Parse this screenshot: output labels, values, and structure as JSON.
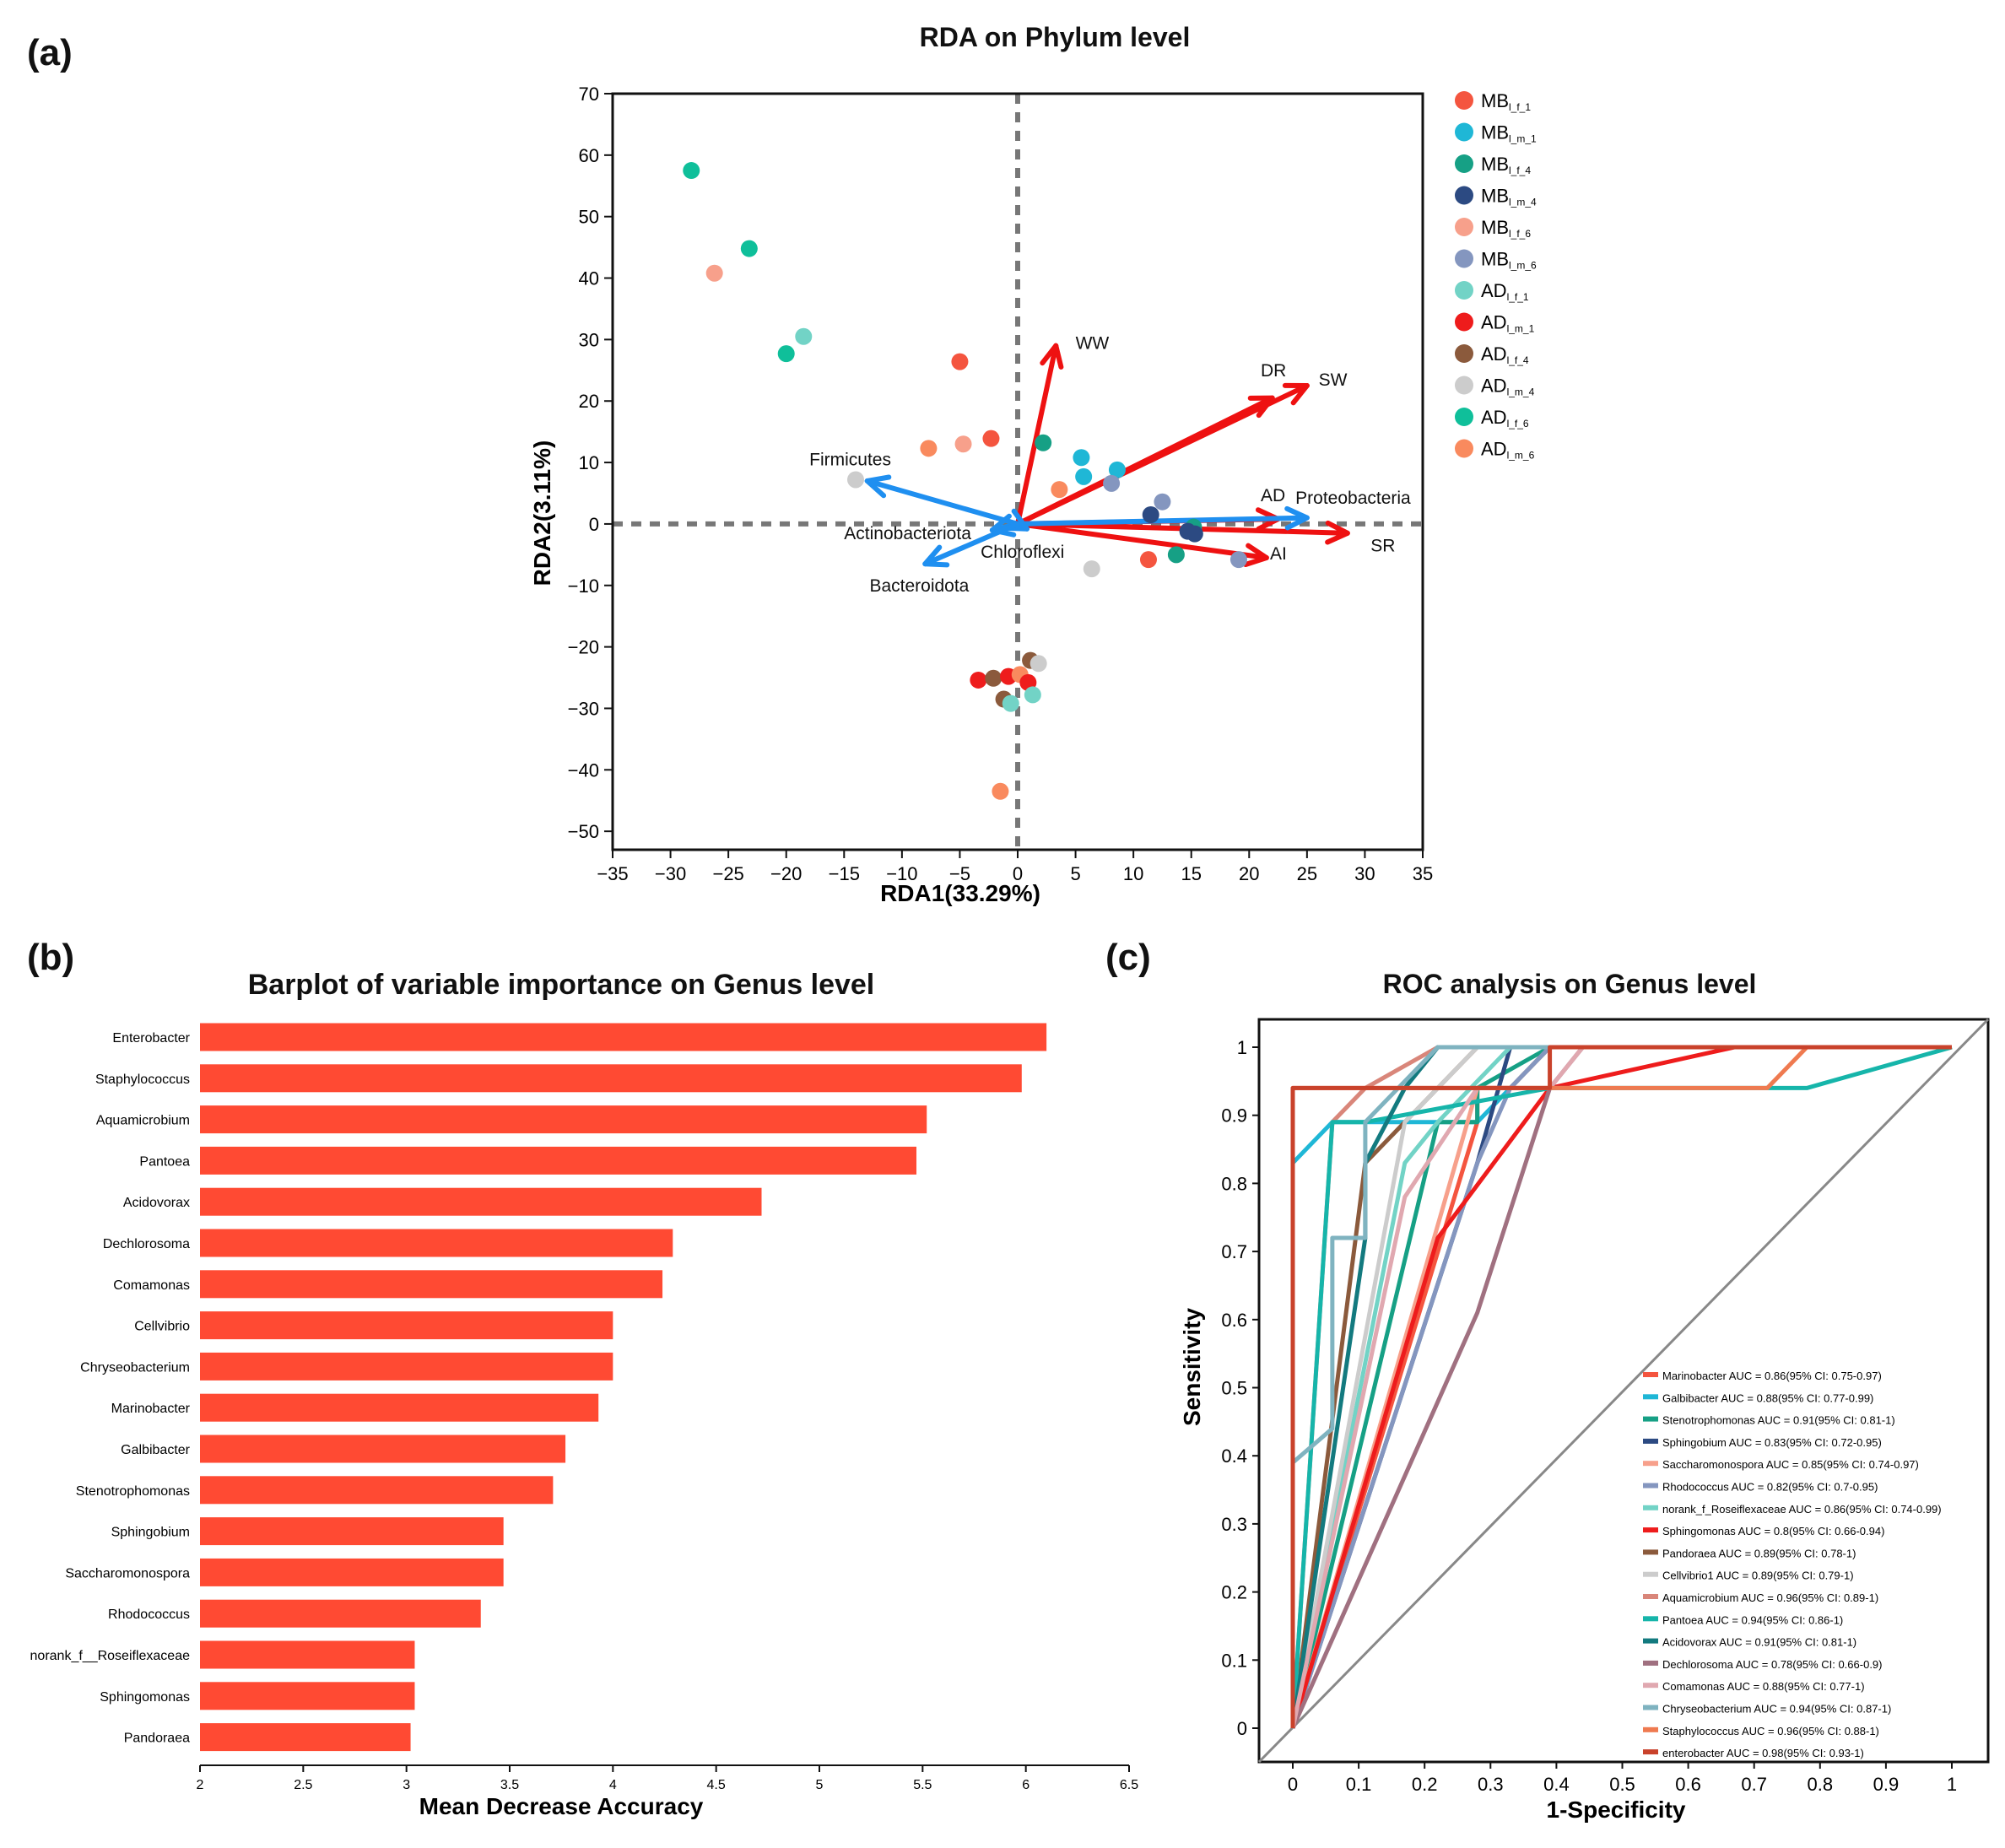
{
  "panels": {
    "a_label": "(a)",
    "b_label": "(b)",
    "c_label": "(c)"
  },
  "chart_data": [
    {
      "id": "rda",
      "type": "scatter",
      "title": "RDA on Phylum level",
      "xlabel": "RDA1(33.29%)",
      "ylabel": "RDA2(3.11%)",
      "xlim": [
        -35,
        35
      ],
      "ylim": [
        -53,
        70
      ],
      "xticks": [
        "−35",
        "−30",
        "−25",
        "−20",
        "−15",
        "−10",
        "−5",
        "0",
        "5",
        "10",
        "15",
        "20",
        "25",
        "30",
        "35"
      ],
      "xtick_values": [
        -35,
        -30,
        -25,
        -20,
        -15,
        -10,
        -5,
        0,
        5,
        10,
        15,
        20,
        25,
        30,
        35
      ],
      "yticks": [
        "70",
        "60",
        "50",
        "40",
        "30",
        "20",
        "10",
        "0",
        "−10",
        "−20",
        "−30",
        "−40",
        "−50"
      ],
      "ytick_values": [
        70,
        60,
        50,
        40,
        30,
        20,
        10,
        0,
        -10,
        -20,
        -30,
        -40,
        -50
      ],
      "groups": [
        {
          "prefix": "MB",
          "sub": "l_f_1",
          "color": "#f4553f"
        },
        {
          "prefix": "MB",
          "sub": "l_m_1",
          "color": "#1fb7d6"
        },
        {
          "prefix": "MB",
          "sub": "l_f_4",
          "color": "#16a085"
        },
        {
          "prefix": "MB",
          "sub": "l_m_4",
          "color": "#2c4a82"
        },
        {
          "prefix": "MB",
          "sub": "l_f_6",
          "color": "#f7a08b"
        },
        {
          "prefix": "MB",
          "sub": "l_m_6",
          "color": "#8496bf"
        },
        {
          "prefix": "AD",
          "sub": "l_f_1",
          "color": "#72d3c6"
        },
        {
          "prefix": "AD",
          "sub": "l_m_1",
          "color": "#ee1c1c"
        },
        {
          "prefix": "AD",
          "sub": "l_f_4",
          "color": "#8b5a3c"
        },
        {
          "prefix": "AD",
          "sub": "l_m_4",
          "color": "#cccccc"
        },
        {
          "prefix": "AD",
          "sub": "l_f_6",
          "color": "#0fbf9a"
        },
        {
          "prefix": "AD",
          "sub": "l_m_6",
          "color": "#f98a5e"
        }
      ],
      "points": [
        {
          "g": 10,
          "x": -28.2,
          "y": 57.5
        },
        {
          "g": 10,
          "x": -23.2,
          "y": 44.8
        },
        {
          "g": 4,
          "x": -26.2,
          "y": 40.8
        },
        {
          "g": 6,
          "x": -18.5,
          "y": 30.5
        },
        {
          "g": 10,
          "x": -20.0,
          "y": 27.7
        },
        {
          "g": 0,
          "x": -5.0,
          "y": 26.4
        },
        {
          "g": 0,
          "x": -2.3,
          "y": 13.9
        },
        {
          "g": 4,
          "x": -4.7,
          "y": 13.0
        },
        {
          "g": 11,
          "x": -7.7,
          "y": 12.3
        },
        {
          "g": 2,
          "x": 2.2,
          "y": 13.2
        },
        {
          "g": 1,
          "x": 5.5,
          "y": 10.8
        },
        {
          "g": 1,
          "x": 8.6,
          "y": 8.8
        },
        {
          "g": 1,
          "x": 5.7,
          "y": 7.7
        },
        {
          "g": 5,
          "x": 8.1,
          "y": 6.6
        },
        {
          "g": 11,
          "x": 3.6,
          "y": 5.6
        },
        {
          "g": 9,
          "x": -14.0,
          "y": 7.2
        },
        {
          "g": 5,
          "x": 12.5,
          "y": 3.6
        },
        {
          "g": 3,
          "x": 11.5,
          "y": 1.5
        },
        {
          "g": 2,
          "x": 15.2,
          "y": -0.5
        },
        {
          "g": 3,
          "x": 14.7,
          "y": -1.2
        },
        {
          "g": 3,
          "x": 15.3,
          "y": -1.6
        },
        {
          "g": 2,
          "x": 13.7,
          "y": -5.0
        },
        {
          "g": 0,
          "x": 11.3,
          "y": -5.8
        },
        {
          "g": 5,
          "x": 19.1,
          "y": -5.8
        },
        {
          "g": 9,
          "x": 6.4,
          "y": -7.3
        },
        {
          "g": 8,
          "x": 1.1,
          "y": -22.2
        },
        {
          "g": 9,
          "x": 1.8,
          "y": -22.7
        },
        {
          "g": 7,
          "x": -3.4,
          "y": -25.4
        },
        {
          "g": 8,
          "x": -2.1,
          "y": -25.1
        },
        {
          "g": 7,
          "x": -0.8,
          "y": -24.8
        },
        {
          "g": 11,
          "x": 0.2,
          "y": -24.5
        },
        {
          "g": 7,
          "x": 0.9,
          "y": -25.8
        },
        {
          "g": 8,
          "x": -1.2,
          "y": -28.5
        },
        {
          "g": 6,
          "x": -0.6,
          "y": -29.2
        },
        {
          "g": 6,
          "x": 1.3,
          "y": -27.8
        },
        {
          "g": 11,
          "x": -1.5,
          "y": -43.5
        }
      ],
      "env_arrows": [
        {
          "name": "WW",
          "x": 3.3,
          "y": 29.0,
          "lx": 5.0,
          "ly": 28.5
        },
        {
          "name": "DR",
          "x": 22.0,
          "y": 20.5,
          "lx": 21.0,
          "ly": 24.0
        },
        {
          "name": "SW",
          "x": 25.0,
          "y": 22.5,
          "lx": 26.0,
          "ly": 22.5
        },
        {
          "name": "AD",
          "x": 22.5,
          "y": 0.8,
          "lx": 21.0,
          "ly": 3.7
        },
        {
          "name": "AI",
          "x": 21.5,
          "y": -5.5,
          "lx": 21.8,
          "ly": -5.8
        },
        {
          "name": "SR",
          "x": 28.5,
          "y": -1.5,
          "lx": 30.5,
          "ly": -4.5
        }
      ],
      "species_arrows": [
        {
          "name": "Firmicutes",
          "x": -13.0,
          "y": 7.0,
          "lx": -18.0,
          "ly": 9.5
        },
        {
          "name": "Proteobacteria",
          "x": 25.0,
          "y": 1.0,
          "lx": 24.0,
          "ly": 3.3
        },
        {
          "name": "Actinobacteriota",
          "x": -2.2,
          "y": -1.0,
          "lx": -15.0,
          "ly": -2.5
        },
        {
          "name": "Chloroflexi",
          "x": 0.8,
          "y": -0.8,
          "lx": -3.2,
          "ly": -5.5
        },
        {
          "name": "Bacteroidota",
          "x": -8.0,
          "y": -6.5,
          "lx": -12.8,
          "ly": -11.0
        }
      ],
      "colors": {
        "env_arrow": "#ee1111",
        "species_arrow": "#1f8ff0",
        "zero_line": "#777777"
      }
    },
    {
      "id": "importance",
      "type": "bar",
      "orientation": "horizontal",
      "title": "Barplot of variable importance on Genus level",
      "xlabel": "Mean Decrease Accuracy",
      "xlim": [
        2,
        6.5
      ],
      "xticks": [
        "2",
        "2.5",
        "3",
        "3.5",
        "4",
        "4.5",
        "5",
        "5.5",
        "6",
        "6.5"
      ],
      "xtick_values": [
        2,
        2.5,
        3,
        3.5,
        4,
        4.5,
        5,
        5.5,
        6,
        6.5
      ],
      "categories": [
        "Enterobacter",
        "Staphylococcus",
        "Aquamicrobium",
        "Pantoea",
        "Acidovorax",
        "Dechlorosoma",
        "Comamonas",
        "Cellvibrio",
        "Chryseobacterium",
        "Marinobacter",
        "Galbibacter",
        "Stenotrophomonas",
        "Sphingobium",
        "Saccharomonospora",
        "Rhodococcus",
        "norank_f__Roseiflexaceae",
        "Sphingomonas",
        "Pandoraea"
      ],
      "values": [
        6.1,
        5.98,
        5.52,
        5.47,
        4.72,
        4.29,
        4.24,
        4.0,
        4.0,
        3.93,
        3.77,
        3.71,
        3.47,
        3.47,
        3.36,
        3.04,
        3.04,
        3.02
      ],
      "bar_color": "#ff4a33"
    },
    {
      "id": "roc",
      "type": "line",
      "title": "ROC analysis on Genus level",
      "xlabel": "1-Specificity",
      "ylabel": "Sensitivity",
      "xlim": [
        0,
        1
      ],
      "ylim": [
        0,
        1
      ],
      "xticks": [
        "0",
        "0.1",
        "0.2",
        "0.3",
        "0.4",
        "0.5",
        "0.6",
        "0.7",
        "0.8",
        "0.9",
        "1"
      ],
      "yticks": [
        "0",
        "0.1",
        "0.2",
        "0.3",
        "0.4",
        "0.5",
        "0.6",
        "0.7",
        "0.8",
        "0.9",
        "1"
      ],
      "tick_values": [
        0,
        0.1,
        0.2,
        0.3,
        0.4,
        0.5,
        0.6,
        0.7,
        0.8,
        0.9,
        1
      ],
      "series": [
        {
          "name": "Marinobacter AUC = 0.86(95% CI: 0.75-0.97)",
          "color": "#f4553f",
          "x": [
            0,
            0.28,
            0.28,
            0.33,
            0.39,
            1
          ],
          "y": [
            0,
            0.89,
            0.94,
            0.94,
            1,
            1
          ]
        },
        {
          "name": "Galbibacter AUC = 0.88(95% CI: 0.77-0.99)",
          "color": "#1fb7d6",
          "x": [
            0,
            0.0,
            0.06,
            0.28,
            0.33,
            0.39,
            1
          ],
          "y": [
            0.83,
            0.83,
            0.89,
            0.89,
            0.94,
            1,
            1
          ]
        },
        {
          "name": "Stenotrophomonas AUC = 0.91(95% CI: 0.81-1)",
          "color": "#16a085",
          "x": [
            0,
            0.22,
            0.28,
            0.28,
            0.39,
            1
          ],
          "y": [
            0,
            0.89,
            0.89,
            0.94,
            1,
            1
          ]
        },
        {
          "name": "Sphingobium AUC = 0.83(95% CI: 0.72-0.95)",
          "color": "#2c4a82",
          "x": [
            0,
            0.28,
            0.33,
            0.39,
            1
          ],
          "y": [
            0,
            0.83,
            1,
            1,
            1
          ]
        },
        {
          "name": "Saccharomonospora AUC = 0.85(95% CI: 0.74-0.97)",
          "color": "#f7a08b",
          "x": [
            0,
            0.28,
            0.33,
            0.39,
            1
          ],
          "y": [
            0,
            0.94,
            0.94,
            1,
            1
          ]
        },
        {
          "name": "Rhodococcus AUC = 0.82(95% CI: 0.7-0.95)",
          "color": "#8496bf",
          "x": [
            0,
            0.28,
            0.33,
            0.39,
            1
          ],
          "y": [
            0,
            0.83,
            0.94,
            1,
            1
          ]
        },
        {
          "name": "norank_f_Roseiflexaceae AUC = 0.86(95% CI: 0.74-0.99)",
          "color": "#72d3c6",
          "x": [
            0,
            0.17,
            0.22,
            0.33,
            0.39,
            1
          ],
          "y": [
            0,
            0.83,
            0.89,
            1,
            1,
            1
          ]
        },
        {
          "name": "Sphingomonas AUC = 0.8(95% CI: 0.66-0.94)",
          "color": "#ee1c1c",
          "x": [
            0,
            0.22,
            0.39,
            0.67,
            1
          ],
          "y": [
            0,
            0.72,
            0.94,
            1,
            1
          ]
        },
        {
          "name": "Pandoraea AUC = 0.89(95% CI: 0.78-1)",
          "color": "#8b5a3c",
          "x": [
            0,
            0.11,
            0.11,
            0.17,
            0.28,
            0.39,
            1
          ],
          "y": [
            0,
            0.83,
            0.83,
            0.89,
            1,
            1,
            1
          ]
        },
        {
          "name": "Cellvibrio1 AUC = 0.89(95% CI: 0.79-1)",
          "color": "#cccccc",
          "x": [
            0,
            0.17,
            0.28,
            0.39,
            1
          ],
          "y": [
            0,
            0.89,
            1,
            1,
            1
          ]
        },
        {
          "name": "Aquamicrobium AUC = 0.96(95% CI: 0.89-1)",
          "color": "#d9867a",
          "x": [
            0,
            0.06,
            0.11,
            0.22,
            0.39,
            1
          ],
          "y": [
            0,
            0.89,
            0.94,
            1,
            1,
            1
          ]
        },
        {
          "name": "Pantoea AUC = 0.94(95% CI: 0.86-1)",
          "color": "#16b5aa",
          "x": [
            0,
            0.06,
            0.11,
            0.39,
            0.78,
            1
          ],
          "y": [
            0,
            0.89,
            0.89,
            0.94,
            0.94,
            1
          ]
        },
        {
          "name": "Acidovorax AUC = 0.91(95% CI: 0.81-1)",
          "color": "#137a7f",
          "x": [
            0,
            0.11,
            0.11,
            0.17,
            0.22,
            0.39,
            1
          ],
          "y": [
            0,
            0.72,
            0.83,
            0.94,
            1,
            1,
            1
          ]
        },
        {
          "name": "Dechlorosoma AUC = 0.78(95% CI: 0.66-0.9)",
          "color": "#a07080",
          "x": [
            0,
            0.28,
            0.39,
            0.44,
            1
          ],
          "y": [
            0,
            0.61,
            0.94,
            1,
            1
          ]
        },
        {
          "name": "Comamonas AUC = 0.88(95% CI: 0.77-1)",
          "color": "#e0a8b0",
          "x": [
            0,
            0.17,
            0.28,
            0.39,
            0.44,
            1
          ],
          "y": [
            0,
            0.78,
            0.94,
            0.94,
            1,
            1
          ]
        },
        {
          "name": "Chryseobacterium AUC = 0.94(95% CI: 0.87-1)",
          "color": "#7fb3c0",
          "x": [
            0,
            0.0,
            0.06,
            0.06,
            0.11,
            0.11,
            0.22,
            0.39,
            1
          ],
          "y": [
            0.39,
            0.39,
            0.44,
            0.72,
            0.72,
            0.89,
            1,
            1,
            1
          ]
        },
        {
          "name": "Staphylococcus AUC = 0.96(95% CI: 0.88-1)",
          "color": "#ef7a50",
          "x": [
            0,
            0.0,
            0.39,
            0.72,
            0.78,
            1
          ],
          "y": [
            0,
            0.94,
            0.94,
            0.94,
            1,
            1
          ]
        },
        {
          "name": "enterobacter AUC = 0.98(95% CI: 0.93-1)",
          "color": "#c9422b",
          "x": [
            0,
            0.0,
            0.39,
            0.39,
            1
          ],
          "y": [
            0,
            0.94,
            0.94,
            1,
            1
          ]
        }
      ]
    }
  ]
}
